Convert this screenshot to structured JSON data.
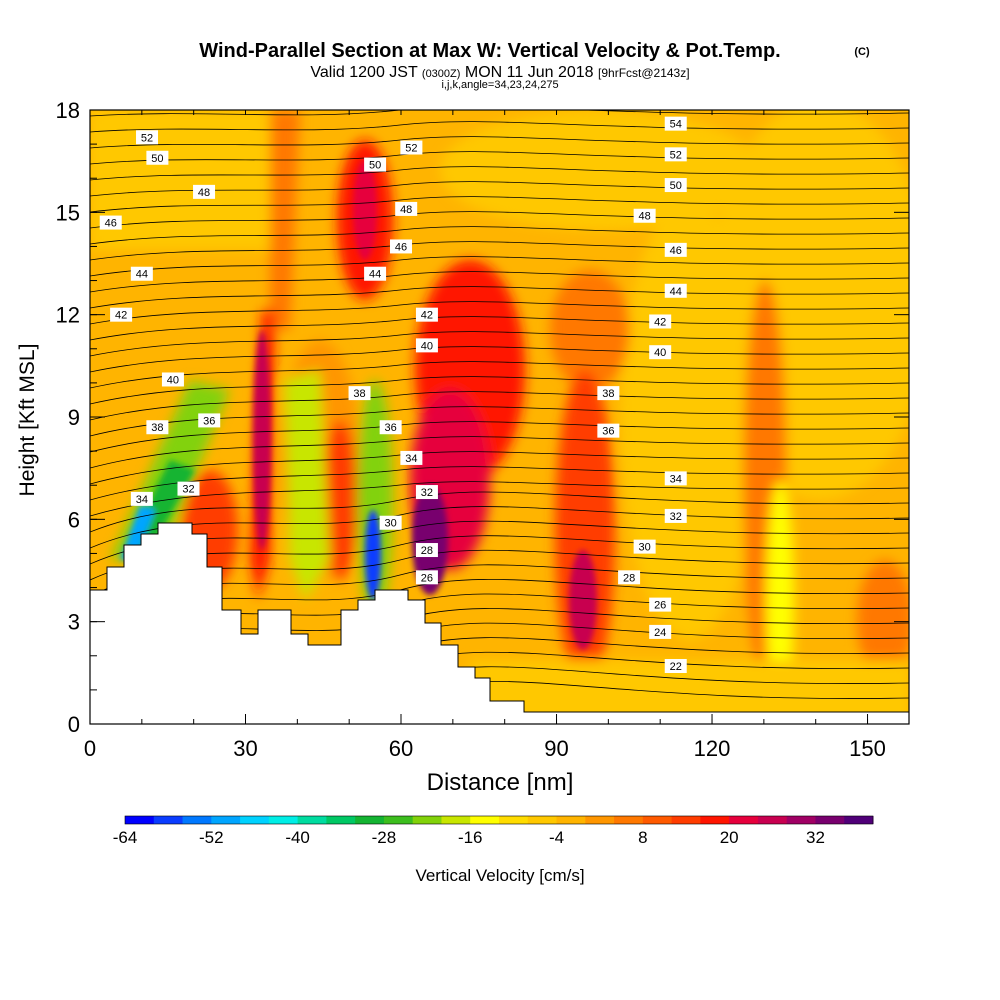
{
  "chart_data": {
    "type": "heatmap",
    "title": "Wind-Parallel Section at Max W: Vertical Velocity & Pot.Temp.",
    "title_mark": "(C)",
    "subtitle_main": "Valid 1200 JST",
    "subtitle_utc": "(0300Z)",
    "subtitle_date": "MON 11 Jun 2018",
    "subtitle_fcst": "[9hrFcst@2143z]",
    "subtitle_params": "i,j,k,angle=34,23,24,275",
    "xlabel": "Distance [nm]",
    "ylabel": "Height [Kft MSL]",
    "xlim": [
      0,
      158
    ],
    "ylim": [
      0,
      18
    ],
    "x_ticks": [
      "0",
      "30",
      "60",
      "90",
      "120",
      "150"
    ],
    "y_ticks": [
      "0",
      "3",
      "6",
      "9",
      "12",
      "15",
      "18"
    ],
    "colorbar": {
      "label": "Vertical Velocity [cm/s]",
      "tick_labels": [
        "-64",
        "-52",
        "-40",
        "-28",
        "-16",
        "-4",
        "8",
        "20",
        "32"
      ],
      "colors": [
        "#0000ff",
        "#0a3cff",
        "#0078ff",
        "#00a5ff",
        "#00d2ff",
        "#00eee6",
        "#00dca0",
        "#00c864",
        "#14b432",
        "#3cbe1e",
        "#82d20a",
        "#c8e600",
        "#ffff00",
        "#ffdc00",
        "#ffc800",
        "#ffb400",
        "#ff9600",
        "#ff7800",
        "#ff5a00",
        "#ff3c00",
        "#ff1400",
        "#e6003c",
        "#c80050",
        "#a00064",
        "#78006e",
        "#500078"
      ]
    },
    "contours": {
      "variable": "Potential Temperature",
      "labels": [
        {
          "x": 11,
          "y": 17.2,
          "t": "52"
        },
        {
          "x": 13,
          "y": 16.6,
          "t": "50"
        },
        {
          "x": 22,
          "y": 15.6,
          "t": "48"
        },
        {
          "x": 4,
          "y": 14.7,
          "t": "46"
        },
        {
          "x": 10,
          "y": 13.2,
          "t": "44"
        },
        {
          "x": 6,
          "y": 12.0,
          "t": "42"
        },
        {
          "x": 16,
          "y": 10.1,
          "t": "40"
        },
        {
          "x": 13,
          "y": 8.7,
          "t": "38"
        },
        {
          "x": 23,
          "y": 8.9,
          "t": "36"
        },
        {
          "x": 10,
          "y": 6.6,
          "t": "34"
        },
        {
          "x": 19,
          "y": 6.9,
          "t": "32"
        },
        {
          "x": 62,
          "y": 16.9,
          "t": "52"
        },
        {
          "x": 55,
          "y": 16.4,
          "t": "50"
        },
        {
          "x": 61,
          "y": 15.1,
          "t": "48"
        },
        {
          "x": 60,
          "y": 14.0,
          "t": "46"
        },
        {
          "x": 55,
          "y": 13.2,
          "t": "44"
        },
        {
          "x": 65,
          "y": 12.0,
          "t": "42"
        },
        {
          "x": 65,
          "y": 11.1,
          "t": "40"
        },
        {
          "x": 52,
          "y": 9.7,
          "t": "38"
        },
        {
          "x": 58,
          "y": 8.7,
          "t": "36"
        },
        {
          "x": 62,
          "y": 7.8,
          "t": "34"
        },
        {
          "x": 65,
          "y": 6.8,
          "t": "32"
        },
        {
          "x": 58,
          "y": 5.9,
          "t": "30"
        },
        {
          "x": 65,
          "y": 5.1,
          "t": "28"
        },
        {
          "x": 65,
          "y": 4.3,
          "t": "26"
        },
        {
          "x": 113,
          "y": 17.6,
          "t": "54"
        },
        {
          "x": 113,
          "y": 16.7,
          "t": "52"
        },
        {
          "x": 113,
          "y": 15.8,
          "t": "50"
        },
        {
          "x": 107,
          "y": 14.9,
          "t": "48"
        },
        {
          "x": 113,
          "y": 13.9,
          "t": "46"
        },
        {
          "x": 113,
          "y": 12.7,
          "t": "44"
        },
        {
          "x": 110,
          "y": 11.8,
          "t": "42"
        },
        {
          "x": 110,
          "y": 10.9,
          "t": "40"
        },
        {
          "x": 100,
          "y": 9.7,
          "t": "38"
        },
        {
          "x": 100,
          "y": 8.6,
          "t": "36"
        },
        {
          "x": 113,
          "y": 7.2,
          "t": "34"
        },
        {
          "x": 113,
          "y": 6.1,
          "t": "32"
        },
        {
          "x": 107,
          "y": 5.2,
          "t": "30"
        },
        {
          "x": 104,
          "y": 4.3,
          "t": "28"
        },
        {
          "x": 110,
          "y": 3.5,
          "t": "26"
        },
        {
          "x": 110,
          "y": 2.7,
          "t": "24"
        },
        {
          "x": 113,
          "y": 1.7,
          "t": "22"
        }
      ]
    }
  }
}
